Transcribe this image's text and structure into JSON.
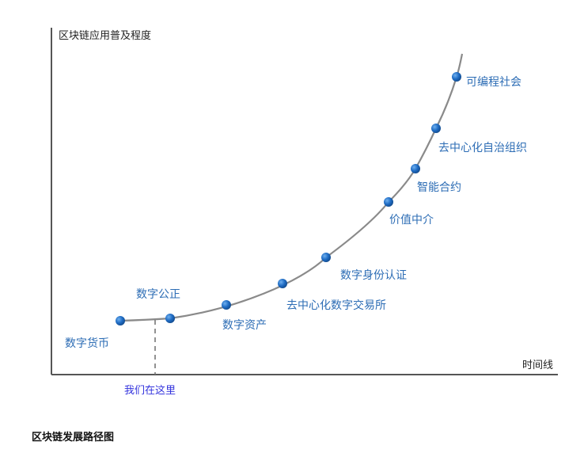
{
  "diagram": {
    "y_axis_label": "区块链应用普及程度",
    "x_axis_label": "时间线",
    "current_marker": "我们在这里",
    "milestones": [
      "数字货币",
      "数字公正",
      "数字资产",
      "去中心化数字交易所",
      "数字身份认证",
      "价值中介",
      "智能合约",
      "去中心化自治组织",
      "可编程社会"
    ],
    "colors": {
      "milestone_dot": "#1f6cc4",
      "milestone_text": "#2d6db5",
      "marker_text": "#3333dd",
      "curve": "#8a8a8a",
      "axis": "#555555"
    }
  },
  "caption": "区块链发展路径图"
}
